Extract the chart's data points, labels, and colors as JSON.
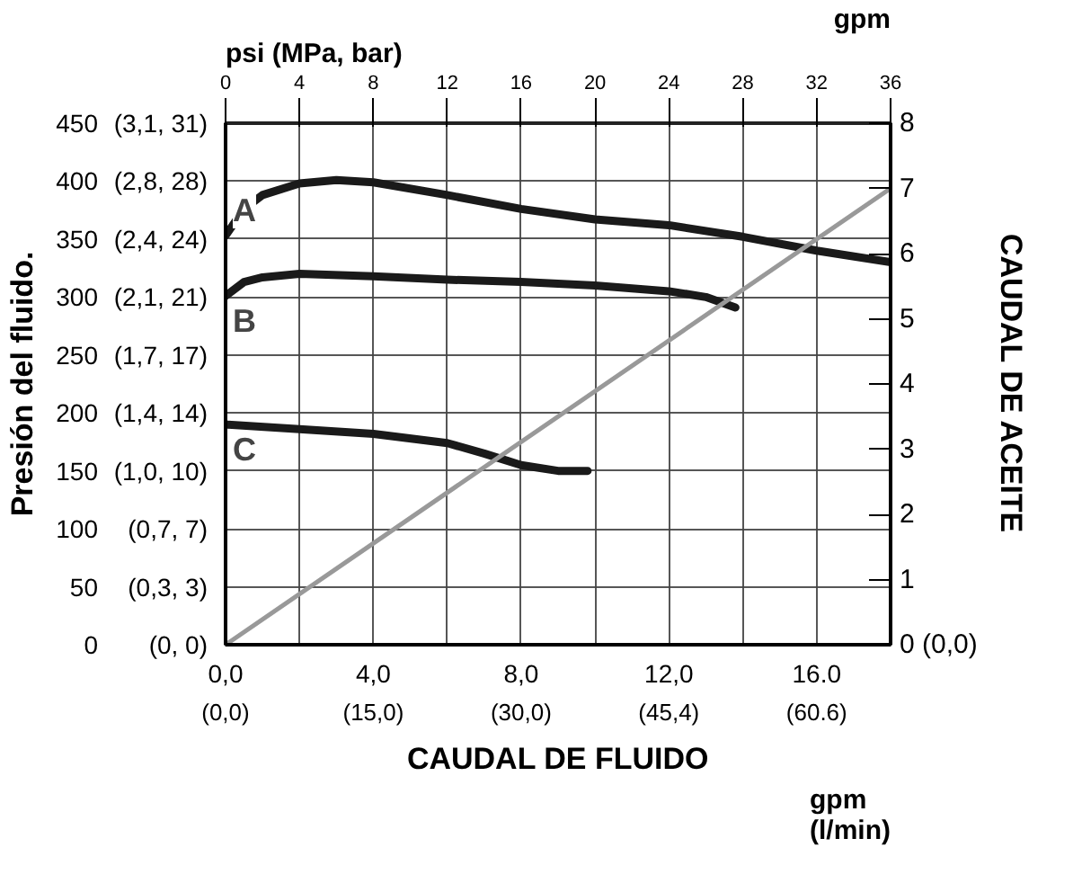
{
  "chart_data": {
    "type": "line",
    "xlabel": "CAUDAL DE FLUIDO",
    "ylabel": "Presión del fluido.",
    "y2label": "CAUDAL DE ACEITE",
    "annotations": [
      "psi (MPa, bar)",
      "gpm",
      "gpm\n(l/min)",
      "(0, 0)",
      "(0,3, 3)",
      "(0,7, 7)",
      "(1,0, 10)",
      "(1,4, 14)",
      "(1,7, 17)",
      "(2,1, 21)",
      "(2,4, 24)",
      "(2,8, 28)",
      "(3,1, 31)",
      "(0,0)",
      "(15,0)",
      "(30,0)",
      "(45,4)",
      "(60.6)"
    ],
    "xlim": [
      0,
      18
    ],
    "xticks": [
      {
        "value": 0,
        "label": "0,0"
      },
      {
        "value": 4,
        "label": "4,0"
      },
      {
        "value": 8,
        "label": "8,0"
      },
      {
        "value": 12,
        "label": "12,0"
      },
      {
        "value": 16,
        "label": "16.0"
      }
    ],
    "x2lim": [
      0,
      36
    ],
    "x2ticks": [
      0,
      4,
      8,
      12,
      16,
      20,
      24,
      28,
      32,
      36
    ],
    "ylim": [
      0,
      450
    ],
    "yticks": [
      0,
      50,
      100,
      150,
      200,
      250,
      300,
      350,
      400,
      450
    ],
    "y2lim": [
      0,
      8
    ],
    "y2ticks": [
      {
        "value": 0,
        "label": "0 (0,0)"
      },
      1,
      2,
      3,
      4,
      5,
      6,
      7,
      8
    ],
    "grid": true,
    "legend": false,
    "marker": "none",
    "line_style": "solid",
    "series": [
      {
        "name": "A",
        "color": "#1a1a1a",
        "x": [
          0,
          0.5,
          1,
          2,
          3,
          4,
          6,
          8,
          10,
          12,
          14,
          16,
          18
        ],
        "values": [
          353,
          376,
          388,
          398,
          401,
          399,
          388,
          376,
          367,
          362,
          352,
          340,
          330
        ]
      },
      {
        "name": "B",
        "color": "#1a1a1a",
        "x": [
          0,
          0.5,
          1,
          2,
          4,
          6,
          8,
          10,
          12,
          13,
          13.8
        ],
        "values": [
          301,
          313,
          317,
          320,
          318,
          315,
          313,
          310,
          305,
          300,
          291
        ]
      },
      {
        "name": "C",
        "color": "#1a1a1a",
        "x": [
          0,
          2,
          4,
          6,
          7,
          8,
          9,
          9.8
        ],
        "values": [
          190,
          186,
          182,
          174,
          165,
          155,
          150,
          150
        ]
      },
      {
        "color": "#999999",
        "axis": "y2",
        "x": [
          0,
          18
        ],
        "values": [
          0,
          7
        ]
      }
    ]
  }
}
